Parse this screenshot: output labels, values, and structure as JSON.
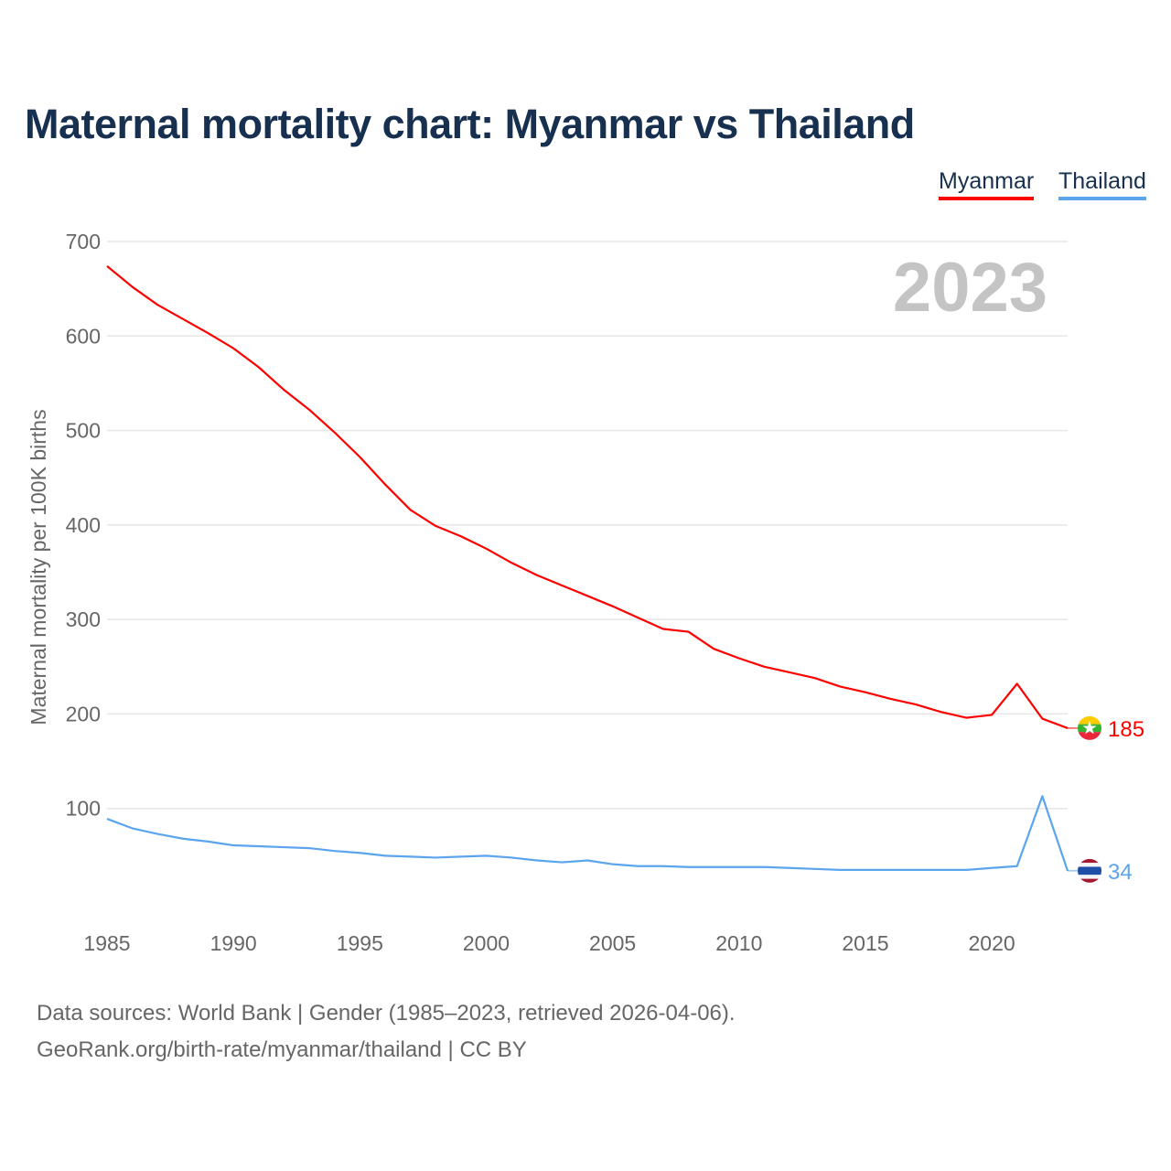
{
  "title": "Maternal mortality chart: Myanmar vs Thailand",
  "footer": {
    "line1": "Data sources: World Bank | Gender (1985–2023, retrieved 2026-04-06).",
    "line2": "GeoRank.org/birth-rate/myanmar/thailand | CC BY"
  },
  "chart_data": {
    "type": "line",
    "title": "Maternal mortality chart: Myanmar vs Thailand",
    "ylabel": "Maternal mortality per 100K births",
    "xlabel": "",
    "year_label": "2023",
    "ylim": [
      0,
      700
    ],
    "xlim": [
      1985,
      2023
    ],
    "yticks": [
      100,
      200,
      300,
      400,
      500,
      600,
      700
    ],
    "xticks": [
      1985,
      1990,
      1995,
      2000,
      2005,
      2010,
      2015,
      2020
    ],
    "legend": "top-right",
    "grid": true,
    "x": [
      1985,
      1986,
      1987,
      1988,
      1989,
      1990,
      1991,
      1992,
      1993,
      1994,
      1995,
      1996,
      1997,
      1998,
      1999,
      2000,
      2001,
      2002,
      2003,
      2004,
      2005,
      2006,
      2007,
      2008,
      2009,
      2010,
      2011,
      2012,
      2013,
      2014,
      2015,
      2016,
      2017,
      2018,
      2019,
      2020,
      2021,
      2022,
      2023
    ],
    "series": [
      {
        "name": "Myanmar",
        "color": "#ff0000",
        "end_label": "185",
        "values": [
          674,
          652,
          633,
          618,
          603,
          587,
          567,
          543,
          522,
          498,
          472,
          443,
          416,
          399,
          388,
          375,
          360,
          347,
          336,
          325,
          314,
          302,
          290,
          287,
          269,
          259,
          250,
          244,
          238,
          229,
          223,
          216,
          210,
          202,
          196,
          199,
          232,
          195,
          185
        ]
      },
      {
        "name": "Thailand",
        "color": "#5ba4ee",
        "end_label": "34",
        "values": [
          89,
          79,
          73,
          68,
          65,
          61,
          60,
          59,
          58,
          55,
          53,
          50,
          49,
          48,
          49,
          50,
          48,
          45,
          43,
          45,
          41,
          39,
          39,
          38,
          38,
          38,
          38,
          37,
          36,
          35,
          35,
          35,
          35,
          35,
          35,
          37,
          39,
          113,
          34
        ]
      }
    ]
  }
}
